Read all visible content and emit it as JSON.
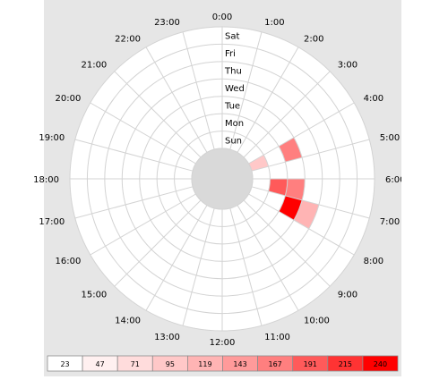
{
  "chart_data": {
    "type": "heatmap",
    "layout": "radial",
    "rings": [
      "Sun",
      "Mon",
      "Tue",
      "Wed",
      "Thu",
      "Fri",
      "Sat"
    ],
    "hours": [
      "0:00",
      "1:00",
      "2:00",
      "3:00",
      "4:00",
      "5:00",
      "6:00",
      "7:00",
      "8:00",
      "9:00",
      "10:00",
      "11:00",
      "12:00",
      "13:00",
      "14:00",
      "15:00",
      "16:00",
      "17:00",
      "18:00",
      "19:00",
      "20:00",
      "21:00",
      "22:00",
      "23:00"
    ],
    "cells": [
      {
        "day": "Sun",
        "hour": 4,
        "value": 100
      },
      {
        "day": "Tue",
        "hour": 4,
        "value": 190
      },
      {
        "day": "Wed",
        "hour": 4,
        "value": 40
      },
      {
        "day": "Thu",
        "hour": 3,
        "value": 45
      },
      {
        "day": "Mon",
        "hour": 6,
        "value": 200
      },
      {
        "day": "Tue",
        "hour": 6,
        "value": 170
      },
      {
        "day": "Wed",
        "hour": 6,
        "value": 23
      },
      {
        "day": "Thu",
        "hour": 6,
        "value": 45
      },
      {
        "day": "Tue",
        "hour": 7,
        "value": 240
      },
      {
        "day": "Wed",
        "hour": 7,
        "value": 125
      }
    ],
    "legend": {
      "labels": [
        "23",
        "47",
        "71",
        "95",
        "119",
        "143",
        "167",
        "191",
        "215",
        "240"
      ],
      "colors": [
        "#ffffff",
        "#fff0f0",
        "#ffdcdc",
        "#ffc8c8",
        "#ffb4b4",
        "#ff9a9a",
        "#ff7f7f",
        "#ff5a5a",
        "#ff3333",
        "#ff0000"
      ]
    },
    "grid_color": "#d3d3d3"
  }
}
